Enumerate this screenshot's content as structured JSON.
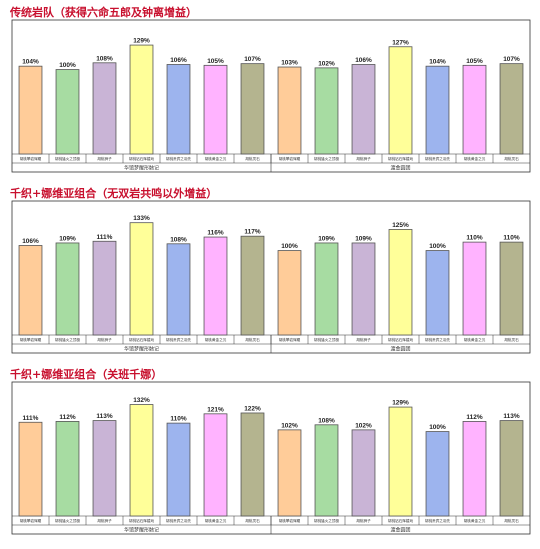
{
  "colors": [
    "#ffcc99",
    "#a7dca2",
    "#c9b4d6",
    "#ffff99",
    "#9db4ee",
    "#ffb3ff",
    "#b4b48f"
  ],
  "chart_data": [
    {
      "type": "bar",
      "title": "传统岩队（获得六命五郎及钟离增益）",
      "groups": [
        {
          "name": "华馆梦醒形骸记",
          "categories": [
            "胡桃攀岩辉耀",
            "胡桃猛火之顶极",
            "胡桃狮子",
            "胡桃钻石辉嬉戏",
            "胡桃贵宾之羽先",
            "胡桃黄金之沉",
            "胡桃灵石"
          ],
          "values": [
            104,
            100,
            108,
            129,
            106,
            105,
            107
          ]
        },
        {
          "name": "渡金圆团",
          "categories": [
            "胡桃攀岩辉耀",
            "胡桃猛火之顶极",
            "胡桃狮子",
            "胡桃钻石辉嬉戏",
            "胡桃贵宾之羽先",
            "胡桃黄金之沉",
            "胡桃灵石"
          ],
          "values": [
            103,
            102,
            106,
            127,
            104,
            105,
            107
          ]
        }
      ]
    },
    {
      "type": "bar",
      "title": "千织+娜维亚组合（无双岩共鸣以外增益）",
      "groups": [
        {
          "name": "华馆梦醒形骸记",
          "categories": [
            "胡桃攀岩辉耀",
            "胡桃猛火之顶极",
            "胡桃狮子",
            "胡桃钻石辉嬉戏",
            "胡桃贵宾之羽先",
            "胡桃黄金之沉",
            "胡桃灵石"
          ],
          "values": [
            106,
            109,
            111,
            133,
            108,
            116,
            117
          ]
        },
        {
          "name": "渡金圆团",
          "categories": [
            "胡桃攀岩辉耀",
            "胡桃猛火之顶极",
            "胡桃狮子",
            "胡桃钻石辉嬉戏",
            "胡桃贵宾之羽先",
            "胡桃黄金之沉",
            "胡桃灵石"
          ],
          "values": [
            100,
            109,
            109,
            125,
            100,
            110,
            110
          ]
        }
      ]
    },
    {
      "type": "bar",
      "title": "千织+娜维亚组合（关班千娜）",
      "groups": [
        {
          "name": "华馆梦醒形骸记",
          "categories": [
            "胡桃攀岩辉耀",
            "胡桃猛火之顶极",
            "胡桃狮子",
            "胡桃钻石辉嬉戏",
            "胡桃贵宾之羽先",
            "胡桃黄金之沉",
            "胡桃灵石"
          ],
          "values": [
            111,
            112,
            113,
            132,
            110,
            121,
            122
          ]
        },
        {
          "name": "渡金圆团",
          "categories": [
            "胡桃攀岩辉耀",
            "胡桃猛火之顶极",
            "胡桃狮子",
            "胡桃钻石辉嬉戏",
            "胡桃贵宾之羽先",
            "胡桃黄金之沉",
            "胡桃灵石"
          ],
          "values": [
            102,
            108,
            102,
            129,
            100,
            112,
            113
          ]
        }
      ]
    }
  ]
}
